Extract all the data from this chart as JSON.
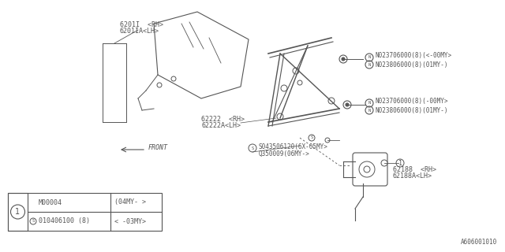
{
  "bg_color": "#ffffff",
  "line_color": "#555555",
  "part_labels": {
    "glass_rh": "6201I  <RH>",
    "glass_lh": "6201IA<LH>",
    "regulator_rh": "62222  <RH>",
    "regulator_lh": "62222A<LH>",
    "motor_rh": "62188  <RH>",
    "motor_lh": "62188A<LH>",
    "bolt1_line1": "N023706000(8)(<-00MY>",
    "bolt1_line2": "N023806000(8)(01MY-)",
    "bolt2_line1": "N023706000(8)(-00MY>",
    "bolt2_line2": "N023806000(8)(01MY-)",
    "screw_label1": "S043506120(6X-05MY>",
    "screw_label2": "Q350009(06MY->",
    "front_label": "FRONT",
    "catalog_code": "A606001010"
  },
  "table_data": {
    "circle_label": "1",
    "s_label": "S",
    "col1_row1": "010406100 (8)",
    "col1_row2": "M00004",
    "col2_row1": "< -03MY>",
    "col2_row2": "(04MY- >"
  }
}
